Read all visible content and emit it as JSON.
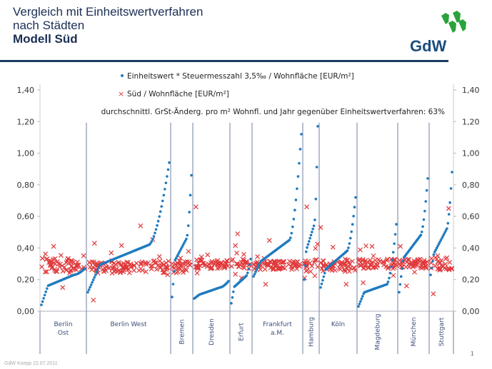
{
  "header": {
    "title_line1": "Vergleich mit Einheitswertverfahren",
    "title_line2": "nach Städten",
    "title_line3": "Modell Süd",
    "logo_text": "GdW",
    "logo_icon": "gdw-green-arrows-icon"
  },
  "footer": {
    "author_date": "GdW Koepp 22.07.2011",
    "page_number": "1"
  },
  "colors": {
    "series_blue": "#1f7bbf",
    "series_red": "#e0393b",
    "title": "#1b2f55",
    "divider": "#8895b0",
    "logo_green": "#2aa33b"
  },
  "chart_data": {
    "type": "scatter",
    "title": "",
    "annotation": "durchschnittl. GrSt-Änderg. pro m² Wohnfl. und Jahr gegenüber Einheitswertverfahren: 63%",
    "legend_position": "top-center",
    "ylim": [
      0,
      1.4
    ],
    "yticks": [
      "0,00",
      "0,20",
      "0,40",
      "0,60",
      "0,80",
      "1,00",
      "1,20",
      "1,40"
    ],
    "ytick_values": [
      0,
      0.2,
      0.4,
      0.6,
      0.8,
      1.0,
      1.2,
      1.4
    ],
    "grid": false,
    "series": [
      {
        "name": "Einheitswert * Steuermesszahl 3,5‰ / Wohnfläche [EUR/m²]",
        "marker": "dot"
      },
      {
        "name": "Süd / Wohnfläche [EUR/m²]",
        "marker": "x"
      }
    ],
    "categories": [
      {
        "label": "Berlin Ost",
        "rotated": false,
        "n": 40,
        "blue": {
          "min": 0.04,
          "plateau": 0.23,
          "max": 0.27
        },
        "red": {
          "center": 0.29,
          "spread": 0.05,
          "low": 0.15,
          "high": 0.41
        }
      },
      {
        "label": "Berlin West",
        "rotated": false,
        "n": 75,
        "blue": {
          "min": 0.12,
          "plateau": 0.42,
          "max": 0.94
        },
        "red": {
          "center": 0.28,
          "spread": 0.04,
          "low": 0.07,
          "high": 0.54
        }
      },
      {
        "label": "Bremen",
        "rotated": true,
        "n": 20,
        "blue": {
          "min": 0.09,
          "plateau": 0.46,
          "max": 0.86
        },
        "red": {
          "center": 0.28,
          "spread": 0.04,
          "low": 0.25,
          "high": 0.43
        }
      },
      {
        "label": "Dresden",
        "rotated": true,
        "n": 33,
        "blue": {
          "min": 0.08,
          "plateau": 0.15,
          "max": 0.19
        },
        "red": {
          "center": 0.3,
          "spread": 0.03,
          "low": 0.27,
          "high": 0.66
        }
      },
      {
        "label": "Erfurt",
        "rotated": true,
        "n": 20,
        "blue": {
          "min": 0.05,
          "plateau": 0.22,
          "max": 0.33
        },
        "red": {
          "center": 0.3,
          "spread": 0.03,
          "low": 0.21,
          "high": 0.49
        }
      },
      {
        "label": "Frankfurt a.M.",
        "rotated": false,
        "n": 45,
        "blue": {
          "min": 0.22,
          "plateau": 0.45,
          "max": 1.12
        },
        "red": {
          "center": 0.29,
          "spread": 0.03,
          "low": 0.17,
          "high": 0.46
        }
      },
      {
        "label": "Hamburg",
        "rotated": true,
        "n": 15,
        "blue": {
          "min": 0.2,
          "plateau": 0.55,
          "max": 1.17
        },
        "red": {
          "center": 0.29,
          "spread": 0.04,
          "low": 0.21,
          "high": 0.66
        }
      },
      {
        "label": "Köln",
        "rotated": false,
        "n": 35,
        "blue": {
          "min": 0.15,
          "plateau": 0.38,
          "max": 0.72
        },
        "red": {
          "center": 0.29,
          "spread": 0.04,
          "low": 0.17,
          "high": 0.53
        }
      },
      {
        "label": "Magdeburg",
        "rotated": true,
        "n": 38,
        "blue": {
          "min": 0.03,
          "plateau": 0.17,
          "max": 0.55
        },
        "red": {
          "center": 0.3,
          "spread": 0.03,
          "low": 0.18,
          "high": 0.41
        }
      },
      {
        "label": "München",
        "rotated": true,
        "n": 30,
        "blue": {
          "min": 0.12,
          "plateau": 0.48,
          "max": 0.84
        },
        "red": {
          "center": 0.3,
          "spread": 0.03,
          "low": 0.16,
          "high": 0.41
        }
      },
      {
        "label": "Stuttgart",
        "rotated": true,
        "n": 22,
        "blue": {
          "min": 0.23,
          "plateau": 0.52,
          "max": 0.88
        },
        "red": {
          "center": 0.3,
          "spread": 0.04,
          "low": 0.11,
          "high": 0.65
        }
      }
    ]
  }
}
